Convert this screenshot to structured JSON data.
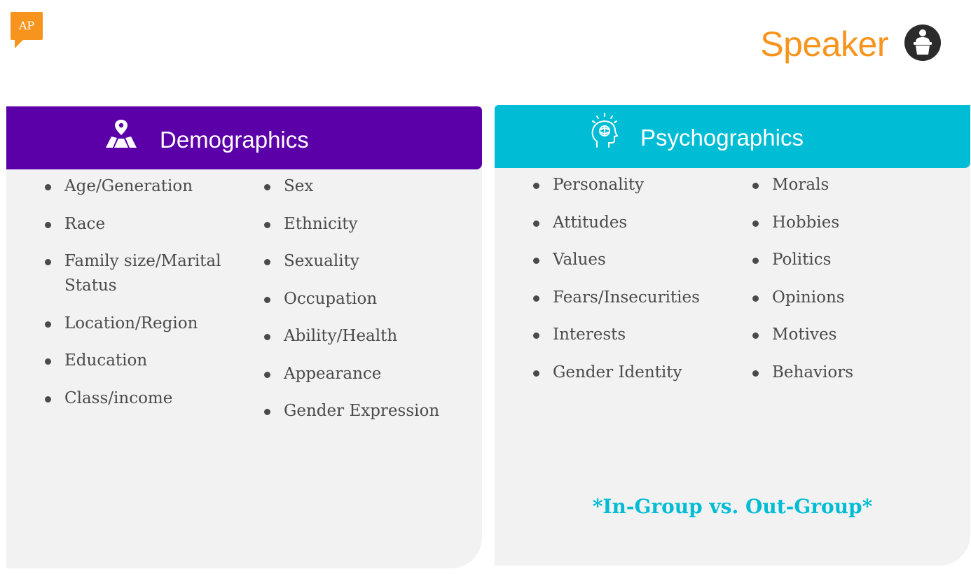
{
  "logo": {
    "text": "AP",
    "color": "#f7941d"
  },
  "header": {
    "title": "Speaker",
    "title_color": "#f7941d",
    "icon": "podium-speaker-icon"
  },
  "demographics": {
    "title": "Demographics",
    "icon": "map-pin-icon",
    "banner_color": "#5b00a8",
    "col1": [
      "Age/Generation",
      "Race",
      "Family size/Marital Status",
      "Location/Region",
      "Education",
      "Class/income"
    ],
    "col2": [
      "Sex",
      "Ethnicity",
      "Sexuality",
      "Occupation",
      "Ability/Health",
      "Appearance",
      "Gender Expression"
    ]
  },
  "psychographics": {
    "title": "Psychographics",
    "icon": "head-brain-icon",
    "banner_color": "#00bcd4",
    "col1": [
      "Personality",
      "Attitudes",
      "Values",
      "Fears/Insecurities",
      "Interests",
      "Gender Identity"
    ],
    "col2": [
      "Morals",
      "Hobbies",
      "Politics",
      "Opinions",
      "Motives",
      "Behaviors"
    ],
    "note": "*In-Group vs. Out-Group*"
  }
}
